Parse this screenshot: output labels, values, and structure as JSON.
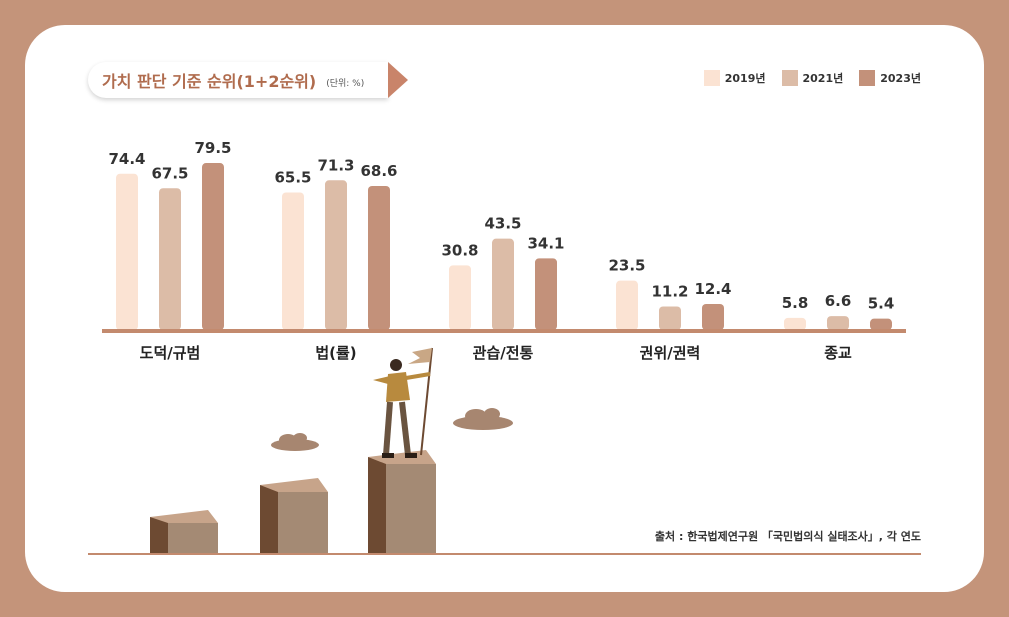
{
  "title": "가치 판단 기준 순위(1+2순위)",
  "unit": "(단위: %)",
  "source": "출처 : 한국법제연구원 「국민법의식 실태조사」, 각 연도",
  "colors": {
    "2019": "#fbe3d3",
    "2021": "#dcbca7",
    "2023": "#c3917a",
    "baseline": "#c38a6e",
    "title": "#b06c4e"
  },
  "chart_data": {
    "type": "bar",
    "categories": [
      "도덕/규범",
      "법(률)",
      "관습/전통",
      "권위/권력",
      "종교"
    ],
    "series": [
      {
        "name": "2019년",
        "values": [
          74.4,
          65.5,
          30.8,
          23.5,
          5.8
        ]
      },
      {
        "name": "2021년",
        "values": [
          67.5,
          71.3,
          43.5,
          11.2,
          6.6
        ]
      },
      {
        "name": "2023년",
        "values": [
          79.5,
          68.6,
          34.1,
          12.4,
          5.4
        ]
      }
    ],
    "title": "가치 판단 기준 순위(1+2순위)",
    "ylabel": "",
    "ylim": [
      0,
      85
    ],
    "legend": "top-right",
    "grid": false
  }
}
